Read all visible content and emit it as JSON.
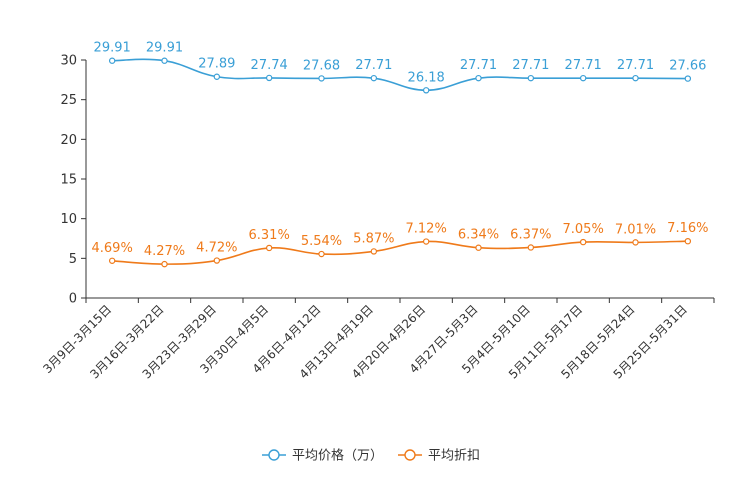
{
  "chart_data": {
    "type": "line",
    "title": "",
    "xlabel": "",
    "ylabel": "",
    "ylim": [
      0,
      30
    ],
    "yticks": [
      0,
      5,
      10,
      15,
      20,
      25,
      30
    ],
    "grid": false,
    "legend_position": "bottom",
    "categories": [
      "3月9日-3月15日",
      "3月16日-3月22日",
      "3月23日-3月29日",
      "3月30日-4月5日",
      "4月6日-4月12日",
      "4月13日-4月19日",
      "4月20日-4月26日",
      "4月27日-5月3日",
      "5月4日-5月10日",
      "5月11日-5月17日",
      "5月18日-5月24日",
      "5月25日-5月31日"
    ],
    "series": [
      {
        "name": "平均价格（万）",
        "color": "#3a9fd6",
        "values": [
          29.91,
          29.91,
          27.89,
          27.74,
          27.68,
          27.71,
          26.18,
          27.71,
          27.71,
          27.71,
          27.71,
          27.66
        ],
        "labels": [
          "29.91",
          "29.91",
          "27.89",
          "27.74",
          "27.68",
          "27.71",
          "26.18",
          "27.71",
          "27.71",
          "27.71",
          "27.71",
          "27.66"
        ]
      },
      {
        "name": "平均折扣",
        "color": "#ef7a1a",
        "values": [
          4.69,
          4.27,
          4.72,
          6.31,
          5.54,
          5.87,
          7.12,
          6.34,
          6.37,
          7.05,
          7.01,
          7.16
        ],
        "labels": [
          "4.69%",
          "4.27%",
          "4.72%",
          "6.31%",
          "5.54%",
          "5.87%",
          "7.12%",
          "6.34%",
          "6.37%",
          "7.05%",
          "7.01%",
          "7.16%"
        ]
      }
    ]
  }
}
